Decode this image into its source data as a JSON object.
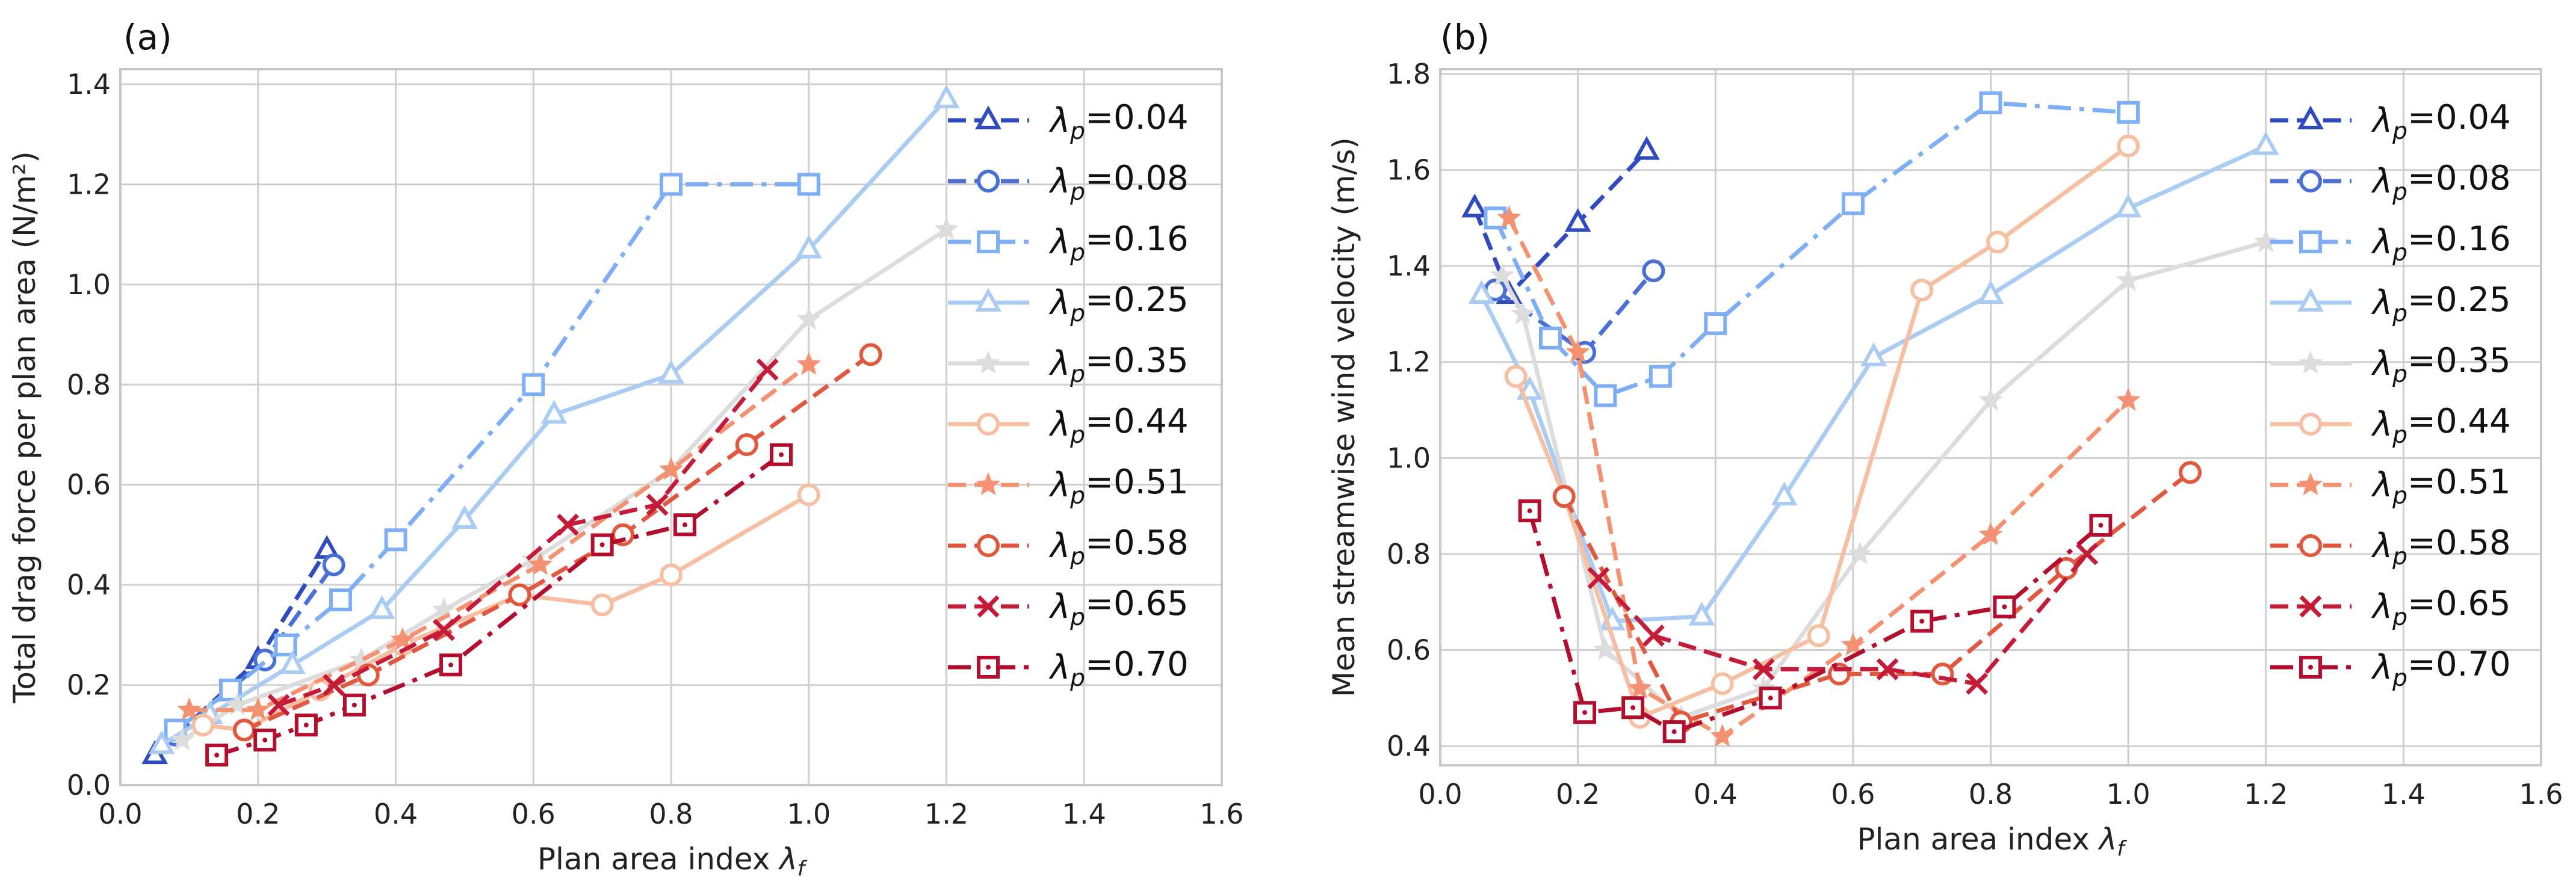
{
  "chart_data": [
    {
      "type": "line",
      "panel_label": "(a)",
      "ylabel": "Total drag force per plan area (N/m²)",
      "xlabel": "Plan area index λf",
      "xlim": [
        0.0,
        1.6
      ],
      "ylim": [
        0.0,
        1.43
      ],
      "xticks": [
        0.0,
        0.2,
        0.4,
        0.6,
        0.8,
        1.0,
        1.2,
        1.4,
        1.6
      ],
      "xtick_labels": [
        "0.0",
        "0.2",
        "0.4",
        "0.6",
        "0.8",
        "1.0",
        "1.2",
        "1.4",
        "1.6"
      ],
      "yticks": [
        0.0,
        0.2,
        0.4,
        0.6,
        0.8,
        1.0,
        1.2,
        1.4
      ],
      "ytick_labels": [
        "0.0",
        "0.2",
        "0.4",
        "0.6",
        "0.8",
        "1.0",
        "1.2",
        "1.4"
      ],
      "grid": true,
      "legend_position": "right",
      "series": [
        {
          "name": "λp=0.04",
          "color": "#2f4bbf",
          "marker": "triangle",
          "dash": "dashed",
          "x": [
            0.05,
            0.2,
            0.3
          ],
          "y": [
            0.06,
            0.25,
            0.47
          ]
        },
        {
          "name": "λp=0.08",
          "color": "#4a6fd6",
          "marker": "circle",
          "dash": "dashed",
          "x": [
            0.08,
            0.21,
            0.31
          ],
          "y": [
            0.1,
            0.25,
            0.44
          ]
        },
        {
          "name": "λp=0.16",
          "color": "#7eaef5",
          "marker": "square",
          "dash": "dashdot",
          "x": [
            0.08,
            0.16,
            0.24,
            0.32,
            0.4,
            0.6,
            0.8,
            1.0
          ],
          "y": [
            0.11,
            0.19,
            0.28,
            0.37,
            0.49,
            0.8,
            1.2,
            1.2
          ]
        },
        {
          "name": "λp=0.25",
          "color": "#aacbf2",
          "marker": "triangle",
          "dash": "solid",
          "x": [
            0.06,
            0.13,
            0.25,
            0.38,
            0.5,
            0.63,
            0.8,
            1.0,
            1.2
          ],
          "y": [
            0.08,
            0.14,
            0.24,
            0.35,
            0.53,
            0.74,
            0.82,
            1.07,
            1.37
          ]
        },
        {
          "name": "λp=0.35",
          "color": "#dcdcdc",
          "marker": "star",
          "dash": "solid",
          "x": [
            0.09,
            0.17,
            0.35,
            0.47,
            0.6,
            0.8,
            1.0,
            1.2
          ],
          "y": [
            0.09,
            0.16,
            0.25,
            0.35,
            0.45,
            0.63,
            0.93,
            1.11
          ]
        },
        {
          "name": "λp=0.44",
          "color": "#f7bfa2",
          "marker": "circle",
          "dash": "solid",
          "x": [
            0.12,
            0.18,
            0.29,
            0.41,
            0.58,
            0.7,
            0.8,
            1.0
          ],
          "y": [
            0.12,
            0.11,
            0.19,
            0.28,
            0.38,
            0.36,
            0.42,
            0.58
          ]
        },
        {
          "name": "λp=0.51",
          "color": "#f49170",
          "marker": "star",
          "dash": "dashed",
          "x": [
            0.1,
            0.2,
            0.41,
            0.61,
            0.8,
            1.0
          ],
          "y": [
            0.15,
            0.15,
            0.29,
            0.44,
            0.63,
            0.84
          ]
        },
        {
          "name": "λp=0.58",
          "color": "#e2583e",
          "marker": "circle",
          "dash": "dashed",
          "x": [
            0.18,
            0.36,
            0.58,
            0.73,
            0.91,
            1.09
          ],
          "y": [
            0.11,
            0.22,
            0.38,
            0.5,
            0.68,
            0.86
          ]
        },
        {
          "name": "λp=0.65",
          "color": "#c61b38",
          "marker": "cross",
          "dash": "dashed",
          "x": [
            0.23,
            0.31,
            0.47,
            0.65,
            0.78,
            0.94
          ],
          "y": [
            0.16,
            0.2,
            0.31,
            0.52,
            0.56,
            0.83
          ]
        },
        {
          "name": "λp=0.70",
          "color": "#b40e2e",
          "marker": "square-dot",
          "dash": "dashdot",
          "x": [
            0.14,
            0.21,
            0.27,
            0.34,
            0.48,
            0.7,
            0.82,
            0.96
          ],
          "y": [
            0.06,
            0.09,
            0.12,
            0.16,
            0.24,
            0.48,
            0.52,
            0.66
          ]
        }
      ]
    },
    {
      "type": "line",
      "panel_label": "(b)",
      "ylabel": "Mean streamwise wind velocity (m/s)",
      "xlabel": "Plan area index λf",
      "xlim": [
        0.0,
        1.6
      ],
      "ylim": [
        0.36,
        1.81
      ],
      "xticks": [
        0.0,
        0.2,
        0.4,
        0.6,
        0.8,
        1.0,
        1.2,
        1.4,
        1.6
      ],
      "xtick_labels": [
        "0.0",
        "0.2",
        "0.4",
        "0.6",
        "0.8",
        "1.0",
        "1.2",
        "1.4",
        "1.6"
      ],
      "yticks": [
        0.4,
        0.6,
        0.8,
        1.0,
        1.2,
        1.4,
        1.6,
        1.8
      ],
      "ytick_labels": [
        "0.4",
        "0.6",
        "0.8",
        "1.0",
        "1.2",
        "1.4",
        "1.6",
        "1.8"
      ],
      "grid": true,
      "legend_position": "right",
      "series": [
        {
          "name": "λp=0.04",
          "color": "#2f4bbf",
          "marker": "triangle",
          "dash": "dashed",
          "x": [
            0.05,
            0.1,
            0.2,
            0.3
          ],
          "y": [
            1.52,
            1.34,
            1.49,
            1.64
          ]
        },
        {
          "name": "λp=0.08",
          "color": "#4a6fd6",
          "marker": "circle",
          "dash": "dashed",
          "x": [
            0.08,
            0.21,
            0.31
          ],
          "y": [
            1.35,
            1.22,
            1.39
          ]
        },
        {
          "name": "λp=0.16",
          "color": "#7eaef5",
          "marker": "square",
          "dash": "dashdot",
          "x": [
            0.08,
            0.16,
            0.24,
            0.32,
            0.4,
            0.6,
            0.8,
            1.0
          ],
          "y": [
            1.5,
            1.25,
            1.13,
            1.17,
            1.28,
            1.53,
            1.74,
            1.72
          ]
        },
        {
          "name": "λp=0.25",
          "color": "#aacbf2",
          "marker": "triangle",
          "dash": "solid",
          "x": [
            0.06,
            0.13,
            0.25,
            0.38,
            0.5,
            0.63,
            0.8,
            1.0,
            1.2
          ],
          "y": [
            1.34,
            1.14,
            0.66,
            0.67,
            0.92,
            1.21,
            1.34,
            1.52,
            1.65
          ]
        },
        {
          "name": "λp=0.35",
          "color": "#dcdcdc",
          "marker": "star",
          "dash": "solid",
          "x": [
            0.09,
            0.12,
            0.24,
            0.35,
            0.47,
            0.61,
            0.8,
            1.0,
            1.2
          ],
          "y": [
            1.38,
            1.3,
            0.6,
            0.46,
            0.52,
            0.8,
            1.12,
            1.37,
            1.45
          ]
        },
        {
          "name": "λp=0.44",
          "color": "#f7bfa2",
          "marker": "circle",
          "dash": "solid",
          "x": [
            0.11,
            0.18,
            0.29,
            0.41,
            0.55,
            0.7,
            0.81,
            1.0
          ],
          "y": [
            1.17,
            0.92,
            0.46,
            0.53,
            0.63,
            1.35,
            1.45,
            1.65
          ]
        },
        {
          "name": "λp=0.51",
          "color": "#f49170",
          "marker": "star",
          "dash": "dashed",
          "x": [
            0.1,
            0.2,
            0.29,
            0.41,
            0.6,
            0.8,
            1.0
          ],
          "y": [
            1.5,
            1.22,
            0.52,
            0.42,
            0.61,
            0.84,
            1.12
          ]
        },
        {
          "name": "λp=0.58",
          "color": "#e2583e",
          "marker": "circle",
          "dash": "dashed",
          "x": [
            0.18,
            0.35,
            0.58,
            0.73,
            0.91,
            1.09
          ],
          "y": [
            0.92,
            0.45,
            0.55,
            0.55,
            0.77,
            0.97
          ]
        },
        {
          "name": "λp=0.65",
          "color": "#c61b38",
          "marker": "cross",
          "dash": "dashed",
          "x": [
            0.23,
            0.31,
            0.47,
            0.65,
            0.78,
            0.94
          ],
          "y": [
            0.75,
            0.63,
            0.56,
            0.56,
            0.53,
            0.8
          ]
        },
        {
          "name": "λp=0.70",
          "color": "#b40e2e",
          "marker": "square-dot",
          "dash": "dashdot",
          "x": [
            0.13,
            0.21,
            0.28,
            0.34,
            0.48,
            0.7,
            0.82,
            0.96
          ],
          "y": [
            0.89,
            0.47,
            0.48,
            0.43,
            0.5,
            0.66,
            0.69,
            0.86
          ]
        }
      ]
    }
  ]
}
